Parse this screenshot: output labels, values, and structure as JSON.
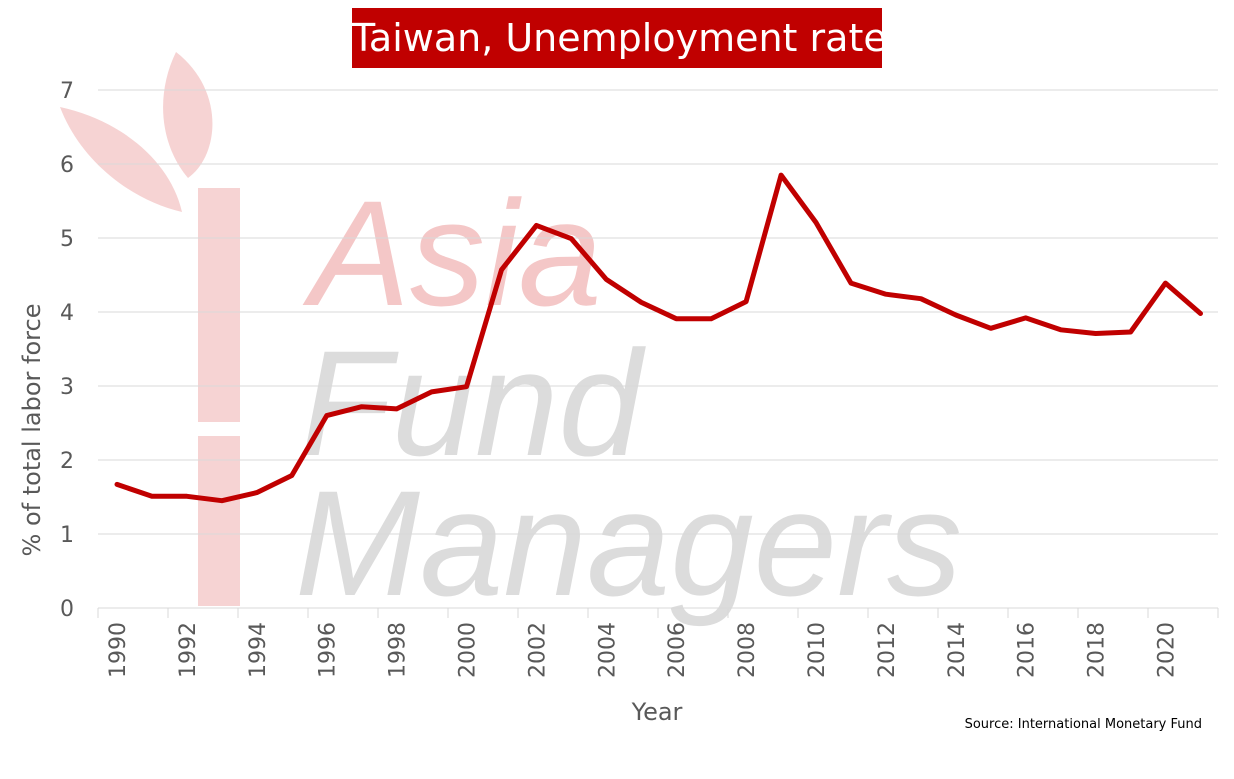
{
  "title": "Taiwan, Unemployment rate",
  "source": "Source: International Monetary Fund",
  "watermark": {
    "lines": [
      "Asia",
      "Fund",
      "Managers"
    ]
  },
  "colors": {
    "line": "#c00000",
    "title_bg": "#c00000",
    "grid": "#d9d9d9",
    "axis_text": "#595959",
    "watermark_text": "#d9d9d9",
    "watermark_asia": "#f4c7c7",
    "watermark_logo": "#f6d3d3"
  },
  "chart_data": {
    "type": "line",
    "title": "Taiwan, Unemployment rate",
    "xlabel": "Year",
    "ylabel": "% of total labor force",
    "ylim": [
      0,
      7
    ],
    "yticks": [
      "0",
      "1",
      "2",
      "3",
      "4",
      "5",
      "6",
      "7"
    ],
    "xticks": [
      "1990",
      "1992",
      "1994",
      "1996",
      "1998",
      "2000",
      "2002",
      "2004",
      "2006",
      "2008",
      "2010",
      "2012",
      "2014",
      "2016",
      "2018",
      "2020"
    ],
    "grid": true,
    "legend": "none",
    "x": [
      1990,
      1991,
      1992,
      1993,
      1994,
      1995,
      1996,
      1997,
      1998,
      1999,
      2000,
      2001,
      2002,
      2003,
      2004,
      2005,
      2006,
      2007,
      2008,
      2009,
      2010,
      2011,
      2012,
      2013,
      2014,
      2015,
      2016,
      2017,
      2018,
      2019,
      2020,
      2021
    ],
    "series": [
      {
        "values": [
          1.67,
          1.51,
          1.51,
          1.45,
          1.56,
          1.79,
          2.6,
          2.72,
          2.69,
          2.92,
          2.99,
          4.57,
          5.17,
          4.99,
          4.44,
          4.13,
          3.91,
          3.91,
          4.14,
          5.85,
          5.21,
          4.39,
          4.24,
          4.18,
          3.96,
          3.78,
          3.92,
          3.76,
          3.71,
          3.73,
          4.39,
          3.98
        ]
      }
    ]
  }
}
